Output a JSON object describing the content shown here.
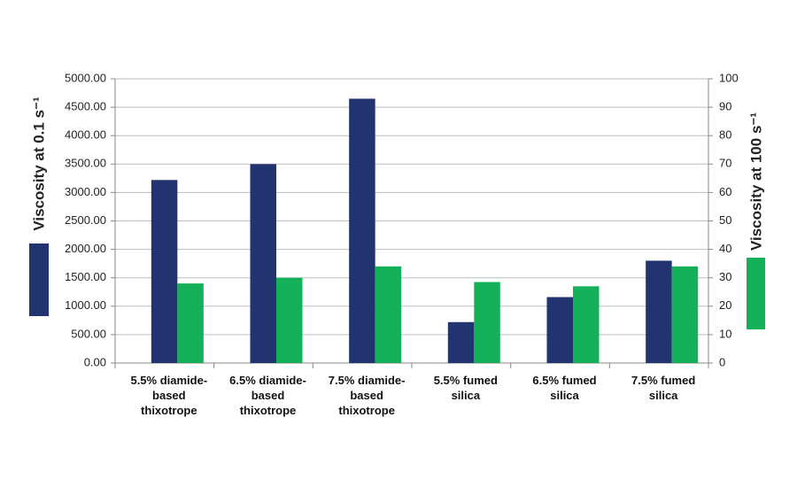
{
  "chart_data": {
    "type": "bar",
    "y_label": "Viscosity at 0.1 s⁻¹",
    "y2_label": "Viscosity at 100 s⁻¹",
    "categories": [
      "5.5% diamide-based thixotrope",
      "6.5% diamide-based thixotrope",
      "7.5% diamide-based thixotrope",
      "5.5% fumed silica",
      "6.5% fumed silica",
      "7.5% fumed silica"
    ],
    "series": [
      {
        "color": "#223470",
        "values": [
          3220,
          3500,
          4650,
          720,
          1160,
          1800
        ]
      },
      {
        "color": "#14b05a",
        "axis": "y2",
        "values": [
          28,
          30,
          34,
          28.5,
          27,
          34
        ]
      }
    ],
    "ylim": [
      0,
      5000
    ],
    "yticks": [
      {
        "value": 0,
        "label": "0.00"
      },
      {
        "value": 500,
        "label": "500.00"
      },
      {
        "value": 1000,
        "label": "1000.00"
      },
      {
        "value": 1500,
        "label": "1500.00"
      },
      {
        "value": 2000,
        "label": "2000.00"
      },
      {
        "value": 2500,
        "label": "2500.00"
      },
      {
        "value": 3000,
        "label": "3000.00"
      },
      {
        "value": 3500,
        "label": "3500.00"
      },
      {
        "value": 4000,
        "label": "4000.00"
      },
      {
        "value": 4500,
        "label": "4500.00"
      },
      {
        "value": 5000,
        "label": "5000.00"
      }
    ],
    "y2lim": [
      0,
      100
    ],
    "y2ticks": [
      0,
      10,
      20,
      30,
      40,
      50,
      60,
      70,
      80,
      90,
      100
    ],
    "grid": true
  }
}
